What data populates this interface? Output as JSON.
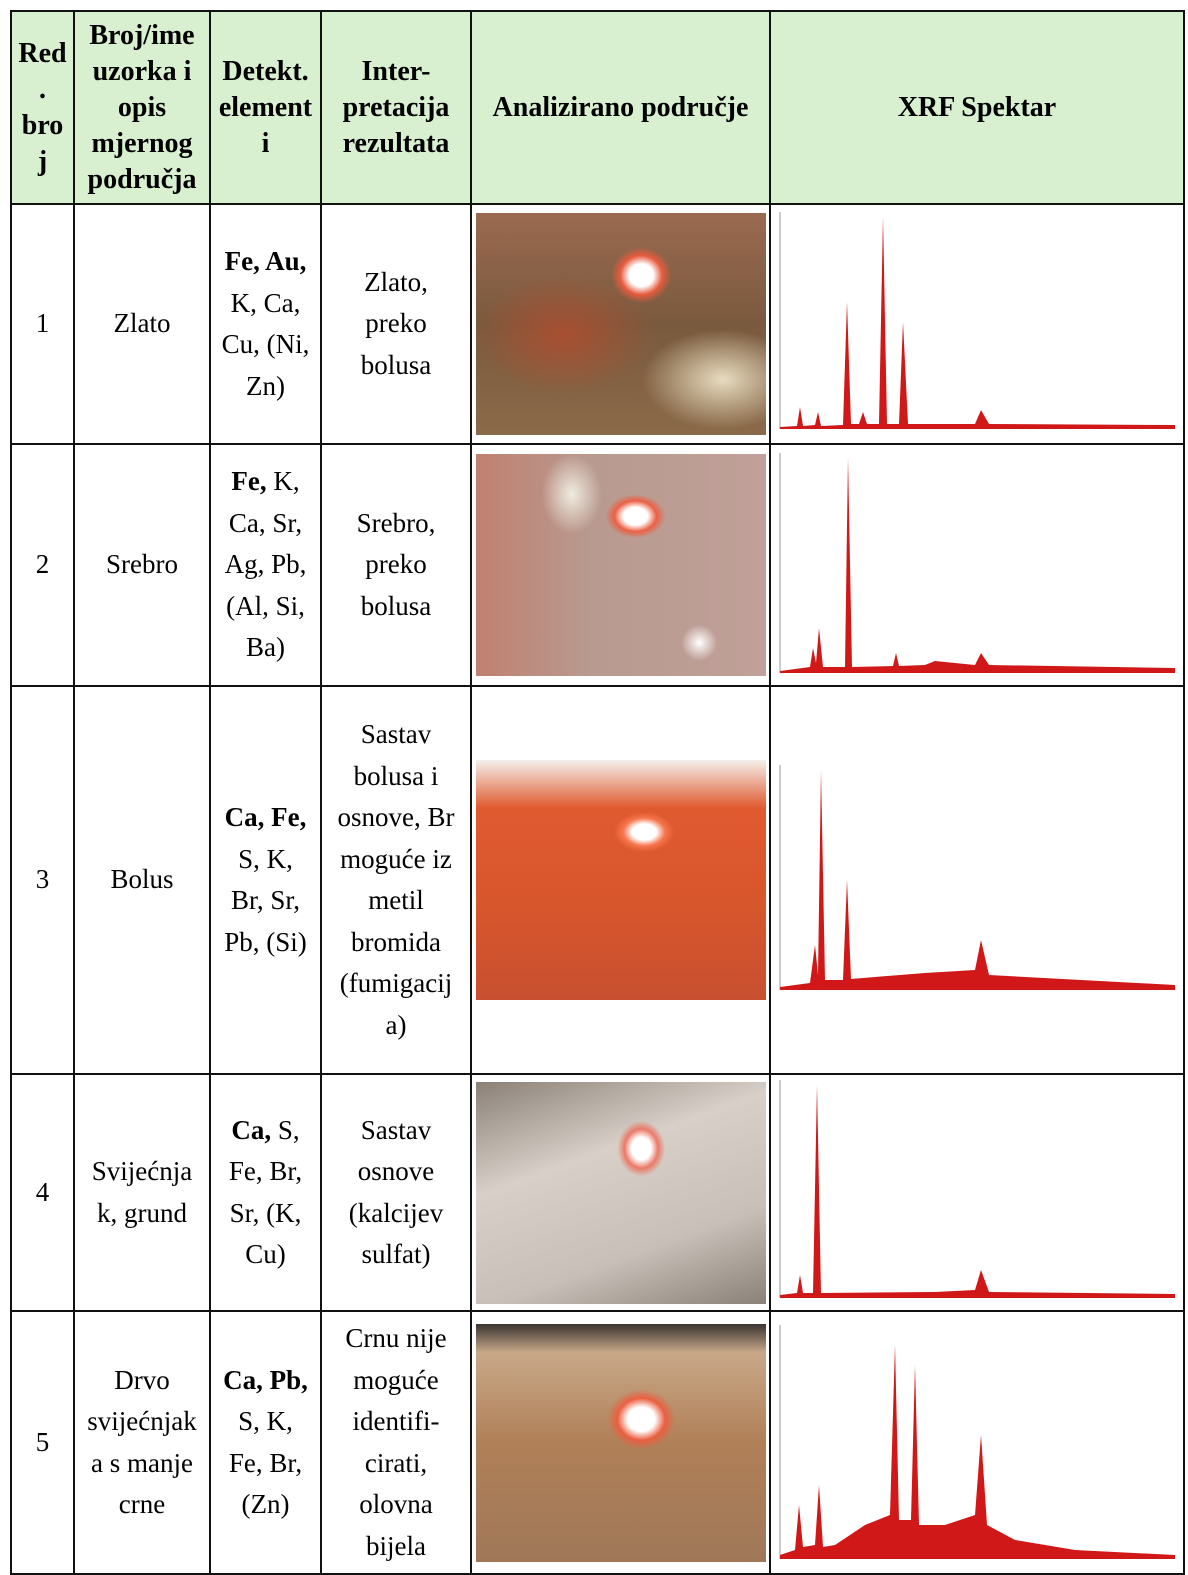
{
  "table": {
    "header": [
      {
        "lines": [
          "Red",
          ".",
          "bro",
          "j"
        ]
      },
      {
        "lines": [
          "Broj/ime",
          "uzorka i",
          "opis",
          "mjernog",
          "područja"
        ]
      },
      {
        "lines": [
          "Detekt.",
          "element",
          "i"
        ]
      },
      {
        "lines": [
          "Inter-",
          "pretacija",
          "rezultata"
        ]
      },
      {
        "lines": [
          "Analizirano područje"
        ]
      },
      {
        "lines": [
          "XRF Spektar"
        ]
      }
    ],
    "rows": [
      {
        "number": "1",
        "sample": {
          "lines": [
            "Zlato"
          ]
        },
        "elements": {
          "lines": [
            {
              "bold": "Fe, Au,"
            },
            {
              "text": "K, Ca,"
            },
            {
              "text": "Cu, (Ni,"
            },
            {
              "text": "Zn)"
            }
          ]
        },
        "interpretation": {
          "lines": [
            "Zlato,",
            "preko",
            "bolusa"
          ]
        }
      },
      {
        "number": "2",
        "sample": {
          "lines": [
            "Srebro"
          ]
        },
        "elements": {
          "lines": [
            {
              "bold": "Fe,",
              "text": "K,"
            },
            {
              "text": "Ca, Sr,"
            },
            {
              "text": "Ag, Pb,"
            },
            {
              "text": "(Al, Si,"
            },
            {
              "text": "Ba)"
            }
          ]
        },
        "interpretation": {
          "lines": [
            "Srebro,",
            "preko",
            "bolusa"
          ]
        }
      },
      {
        "number": "3",
        "sample": {
          "lines": [
            "Bolus"
          ]
        },
        "elements": {
          "lines": [
            {
              "bold": "Ca, Fe,"
            },
            {
              "text": "S, K,"
            },
            {
              "text": "Br, Sr,"
            },
            {
              "text": "Pb, (Si)"
            }
          ]
        },
        "interpretation": {
          "lines": [
            "Sastav",
            "bolusa i",
            "osnove, Br",
            "moguće iz",
            "metil",
            "bromida",
            "(fumigacij",
            "a)"
          ]
        }
      },
      {
        "number": "4",
        "sample": {
          "lines": [
            "Svijećnja",
            "k, grund"
          ]
        },
        "elements": {
          "lines": [
            {
              "bold": "Ca,",
              "text": "S,"
            },
            {
              "text": "Fe, Br,"
            },
            {
              "text": "Sr, (K,"
            },
            {
              "text": "Cu)"
            }
          ]
        },
        "interpretation": {
          "lines": [
            "Sastav",
            "osnove",
            "(kalcijev",
            "sulfat)"
          ]
        }
      },
      {
        "number": "5",
        "sample": {
          "lines": [
            "Drvo",
            "svijećnjak",
            "a s manje",
            "crne"
          ]
        },
        "elements": {
          "lines": [
            {
              "bold": "Ca, Pb,"
            },
            {
              "text": "S, K,"
            },
            {
              "text": "Fe, Br,"
            },
            {
              "text": "(Zn)"
            }
          ]
        },
        "interpretation": {
          "lines": [
            "Crnu nije",
            "moguće",
            "identifi-",
            "cirati,",
            "olovna",
            "bijela"
          ]
        }
      }
    ]
  }
}
